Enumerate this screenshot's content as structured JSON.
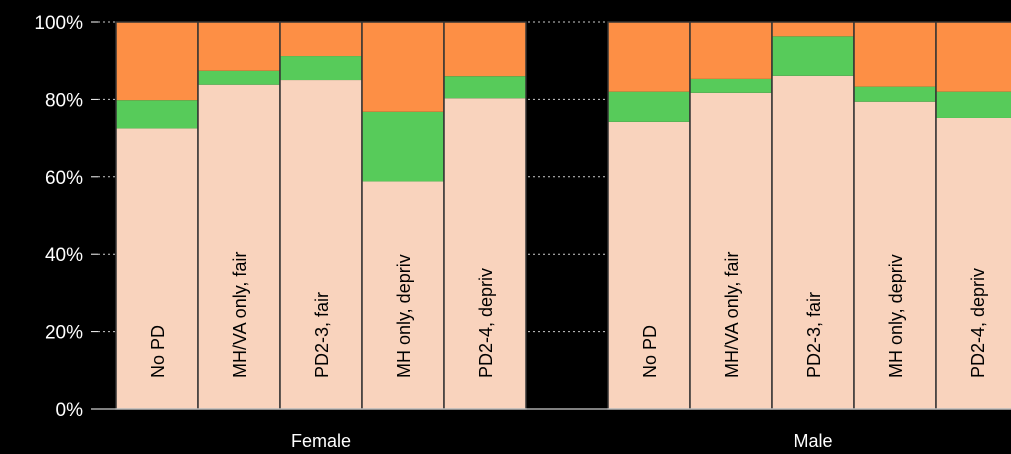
{
  "chart_data": {
    "type": "bar",
    "stacked": true,
    "title": "",
    "xlabel": "",
    "ylabel": "",
    "ylim": [
      0,
      100
    ],
    "yticks": [
      "0%",
      "20%",
      "40%",
      "60%",
      "80%",
      "100%"
    ],
    "grid": true,
    "groups": [
      {
        "label": "Female",
        "categories": [
          "No PD",
          "MH/VA only, fair",
          "PD2-3, fair",
          "MH only, depriv",
          "PD2-4, depriv"
        ],
        "series": [
          {
            "values": [
              72.5,
              83.8,
              85.0,
              58.8,
              80.3
            ]
          },
          {
            "values": [
              7.3,
              3.6,
              6.2,
              18.0,
              5.7
            ]
          },
          {
            "values": [
              20.2,
              12.6,
              8.8,
              23.2,
              14.0
            ]
          }
        ]
      },
      {
        "label": "Male",
        "categories": [
          "No PD",
          "MH/VA only, fair",
          "PD2-3, fair",
          "MH only, depriv",
          "PD2-4, depriv"
        ],
        "series": [
          {
            "values": [
              74.2,
              81.7,
              86.1,
              79.4,
              75.2
            ]
          },
          {
            "values": [
              7.8,
              3.6,
              10.2,
              3.9,
              6.8
            ]
          },
          {
            "values": [
              18.0,
              14.7,
              3.7,
              16.7,
              18.0
            ]
          }
        ]
      }
    ],
    "colors": [
      "#f9d3bd",
      "#57cb5a",
      "#fd8f45"
    ]
  }
}
